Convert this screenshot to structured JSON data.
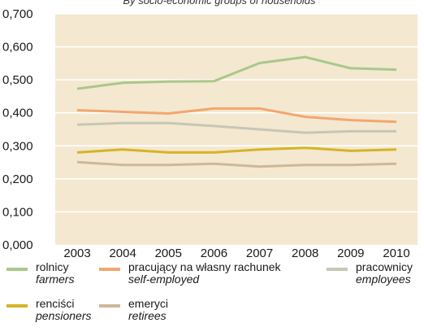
{
  "chart_data": {
    "type": "line",
    "subtitle": "By socio-economic groups of households",
    "x": [
      "2003",
      "2004",
      "2005",
      "2006",
      "2007",
      "2008",
      "2009",
      "2010"
    ],
    "y_ticks": [
      "0,000",
      "0,100",
      "0,200",
      "0,300",
      "0,400",
      "0,500",
      "0,600",
      "0,700"
    ],
    "ylim": [
      0,
      0.7
    ],
    "grid": true,
    "legend_position": "bottom",
    "series": [
      {
        "name": "rolnicy",
        "name_en": "farmers",
        "color": "#a9c88a",
        "values": [
          0.473,
          0.491,
          0.495,
          0.496,
          0.551,
          0.569,
          0.535,
          0.531
        ]
      },
      {
        "name": "pracujący na własny rachunek",
        "name_en": "self-employed",
        "color": "#f2a76e",
        "values": [
          0.408,
          0.403,
          0.398,
          0.413,
          0.413,
          0.388,
          0.378,
          0.373
        ]
      },
      {
        "name": "pracownicy",
        "name_en": "employees",
        "color": "#c6c7b4",
        "values": [
          0.364,
          0.369,
          0.369,
          0.36,
          0.35,
          0.34,
          0.344,
          0.344
        ]
      },
      {
        "name": "renciści",
        "name_en": "pensioners",
        "color": "#d6b327",
        "values": [
          0.28,
          0.289,
          0.28,
          0.28,
          0.289,
          0.294,
          0.285,
          0.289
        ]
      },
      {
        "name": "emeryci",
        "name_en": "retirees",
        "color": "#cdb898",
        "values": [
          0.251,
          0.242,
          0.242,
          0.246,
          0.237,
          0.242,
          0.242,
          0.246
        ]
      }
    ]
  }
}
